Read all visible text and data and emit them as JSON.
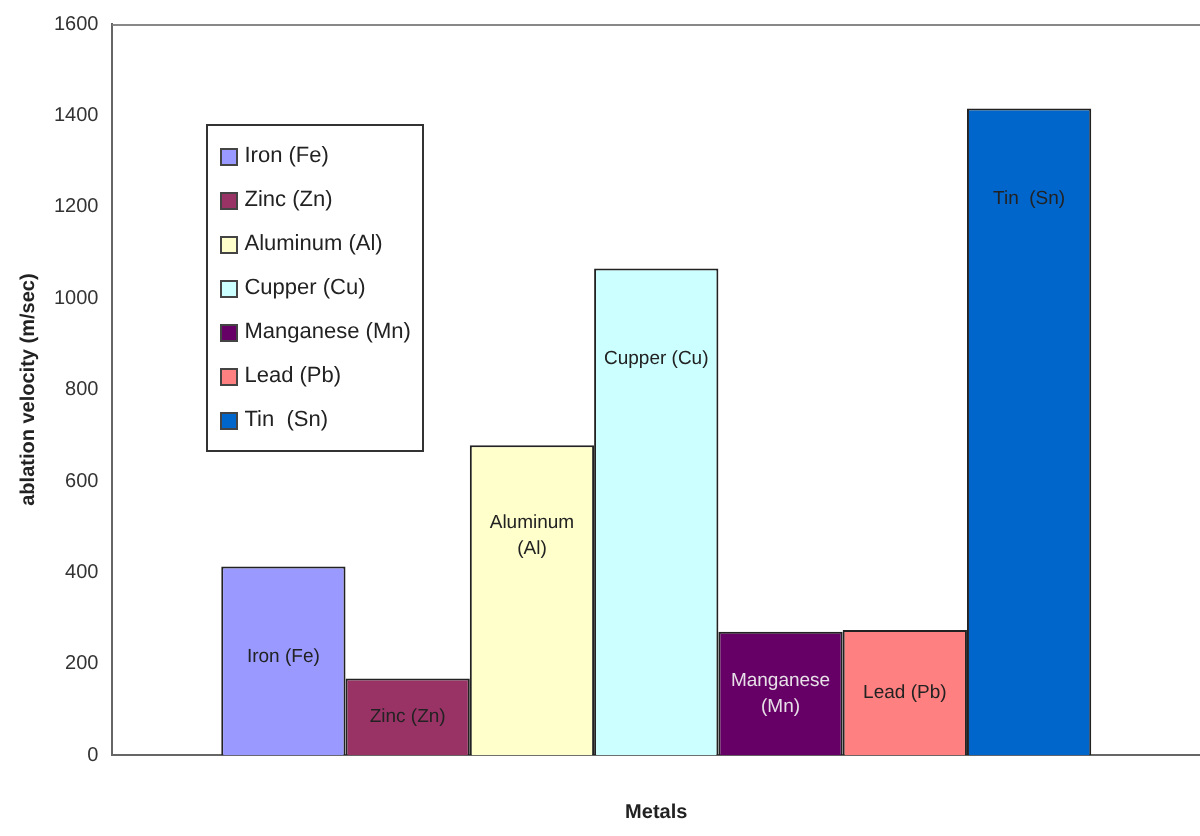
{
  "chart_data": {
    "type": "bar",
    "xlabel": "Metals",
    "ylabel": "ablation velocity (m/sec)",
    "categories": [
      null
    ],
    "series": [
      {
        "name": "Iron (Fe)",
        "color": "#9999ff",
        "values": [
          413
        ]
      },
      {
        "name": "Zinc (Zn)",
        "color": "#993366",
        "values": [
          168
        ]
      },
      {
        "name": "Aluminum (Al)",
        "color": "#ffffcc",
        "values": [
          678
        ]
      },
      {
        "name": "Cupper (Cu)",
        "color": "#ccffff",
        "values": [
          1065
        ]
      },
      {
        "name": "Manganese (Mn)",
        "color": "#660066",
        "values": [
          270
        ]
      },
      {
        "name": "Lead (Pb)",
        "color": "#ff8080",
        "values": [
          274
        ]
      },
      {
        "name": "Tin  (Sn)",
        "color": "#0066cc",
        "values": [
          1415
        ]
      }
    ],
    "ylim": [
      0,
      1600
    ],
    "yticks": [
      0,
      200,
      400,
      600,
      800,
      1000,
      1200,
      1400,
      1600
    ],
    "grid": false,
    "legend": "top left"
  }
}
